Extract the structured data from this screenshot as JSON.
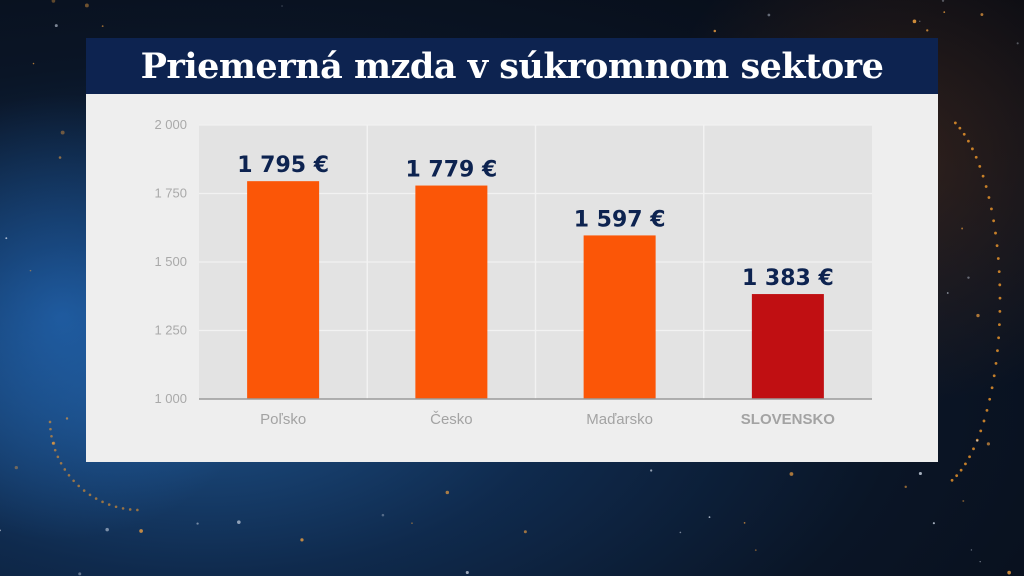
{
  "title": "Priemerná mzda v súkromnom sektore",
  "colors": {
    "bar": "#fb5607",
    "highlight_bar": "#c00f12",
    "title_bg": "#0d2350",
    "value_label": "#0d2350"
  },
  "chart_data": {
    "type": "bar",
    "title": "Priemerná mzda v súkromnom sektore",
    "categories": [
      "Poľsko",
      "Česko",
      "Maďarsko",
      "SLOVENSKO"
    ],
    "values": [
      1795,
      1779,
      1597,
      1383
    ],
    "value_labels": [
      "1 795 €",
      "1 779 €",
      "1 597 €",
      "1 383 €"
    ],
    "highlight_category": "SLOVENSKO",
    "ylim": [
      1000,
      2000
    ],
    "yticks": [
      1000,
      1250,
      1500,
      1750,
      2000
    ],
    "ytick_labels": [
      "1 000",
      "1 250",
      "1 500",
      "1 750",
      "2 000"
    ],
    "xlabel": "",
    "ylabel": "",
    "grid": true
  }
}
